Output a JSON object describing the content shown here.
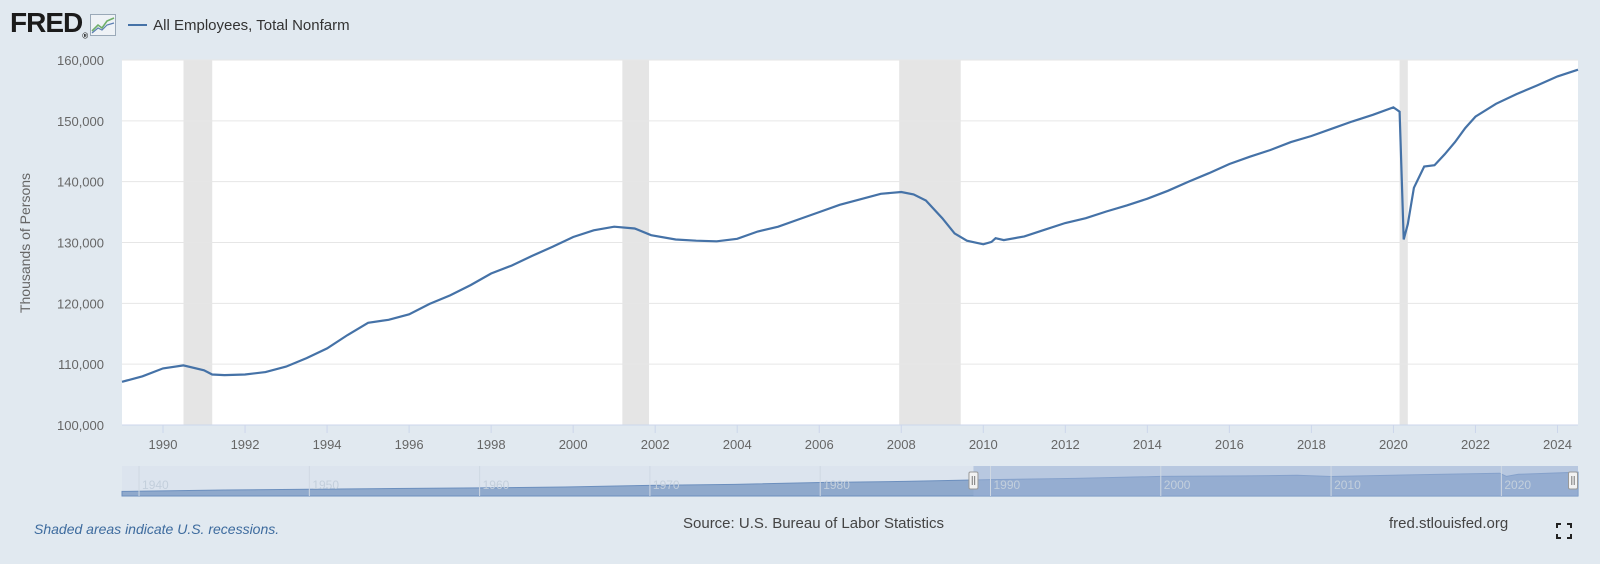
{
  "header": {
    "logo_text": "FRED",
    "logo_reg": "®",
    "legend_label": "All Employees, Total Nonfarm",
    "series_color": "#4572a7"
  },
  "footer": {
    "recession_note": "Shaded areas indicate U.S. recessions.",
    "source": "Source: U.S. Bureau of Labor Statistics",
    "site": "fred.stlouisfed.org",
    "fullscreen_icon": "fullscreen-icon"
  },
  "chart_data": {
    "type": "line",
    "title": "",
    "xlabel": "",
    "ylabel": "Thousands of Persons",
    "xlim": [
      1989.0,
      2024.5
    ],
    "ylim": [
      100000,
      160000
    ],
    "grid": true,
    "legend_position": "top-left",
    "y_ticks": [
      100000,
      110000,
      120000,
      130000,
      140000,
      150000,
      160000
    ],
    "y_tick_labels": [
      "100,000",
      "110,000",
      "120,000",
      "130,000",
      "140,000",
      "150,000",
      "160,000"
    ],
    "x_ticks": [
      1990,
      1992,
      1994,
      1996,
      1998,
      2000,
      2002,
      2004,
      2006,
      2008,
      2010,
      2012,
      2014,
      2016,
      2018,
      2020,
      2022,
      2024
    ],
    "recessions": [
      [
        1990.5,
        1991.2
      ],
      [
        2001.2,
        2001.85
      ],
      [
        2007.95,
        2009.45
      ],
      [
        2020.15,
        2020.35
      ]
    ],
    "series": [
      {
        "name": "All Employees, Total Nonfarm",
        "color": "#4572a7",
        "x": [
          1989.0,
          1989.5,
          1990.0,
          1990.5,
          1991.0,
          1991.2,
          1991.5,
          1992.0,
          1992.5,
          1993.0,
          1993.5,
          1994.0,
          1994.5,
          1995.0,
          1995.5,
          1996.0,
          1996.5,
          1997.0,
          1997.5,
          1998.0,
          1998.5,
          1999.0,
          1999.5,
          2000.0,
          2000.5,
          2001.0,
          2001.5,
          2001.9,
          2002.5,
          2003.0,
          2003.5,
          2004.0,
          2004.5,
          2005.0,
          2005.5,
          2006.0,
          2006.5,
          2007.0,
          2007.5,
          2008.0,
          2008.3,
          2008.6,
          2009.0,
          2009.3,
          2009.6,
          2010.0,
          2010.2,
          2010.3,
          2010.5,
          2011.0,
          2011.5,
          2012.0,
          2012.5,
          2013.0,
          2013.5,
          2014.0,
          2014.5,
          2015.0,
          2015.5,
          2016.0,
          2016.5,
          2017.0,
          2017.5,
          2018.0,
          2018.5,
          2019.0,
          2019.5,
          2020.0,
          2020.15,
          2020.25,
          2020.35,
          2020.5,
          2020.75,
          2021.0,
          2021.25,
          2021.5,
          2021.75,
          2022.0,
          2022.5,
          2023.0,
          2023.5,
          2024.0,
          2024.5
        ],
        "values": [
          107100,
          108000,
          109300,
          109800,
          109000,
          108300,
          108200,
          108300,
          108700,
          109600,
          111000,
          112600,
          114800,
          116800,
          117300,
          118200,
          119900,
          121300,
          123000,
          124900,
          126200,
          127800,
          129300,
          130900,
          132000,
          132600,
          132300,
          131200,
          130500,
          130300,
          130200,
          130600,
          131800,
          132600,
          133800,
          135000,
          136200,
          137100,
          138000,
          138300,
          137900,
          136900,
          134000,
          131500,
          130300,
          129700,
          130100,
          130700,
          130400,
          131000,
          132100,
          133200,
          134000,
          135100,
          136100,
          137200,
          138500,
          140000,
          141400,
          142900,
          144100,
          145200,
          146500,
          147500,
          148700,
          149900,
          151000,
          152200,
          151500,
          130500,
          133000,
          139000,
          142500,
          142700,
          144500,
          146500,
          148800,
          150700,
          152800,
          154400,
          155800,
          157300,
          158400
        ]
      }
    ]
  },
  "navigator": {
    "x_labels": [
      "1940",
      "1950",
      "1960",
      "1970",
      "1980",
      "1990",
      "2000",
      "2010",
      "2020"
    ],
    "range_start": 1939.0,
    "range_end": 2024.5,
    "selected_start": 1989.0,
    "selected_end": 2024.5,
    "x": [
      1939,
      1945,
      1950,
      1955,
      1960,
      1965,
      1970,
      1975,
      1980,
      1985,
      1990,
      1995,
      2000,
      2005,
      2008,
      2010,
      2015,
      2019.9,
      2020.3,
      2021,
      2024.5
    ],
    "values": [
      30600,
      40000,
      45000,
      50000,
      54000,
      60000,
      71000,
      77000,
      90000,
      97000,
      109300,
      117000,
      131000,
      134000,
      138000,
      129700,
      141400,
      152000,
      130500,
      144500,
      158400
    ]
  }
}
